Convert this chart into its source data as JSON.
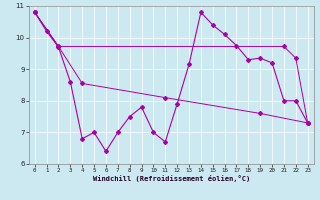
{
  "xlabel": "Windchill (Refroidissement éolien,°C)",
  "bg_color": "#cce8f0",
  "line_color": "#aa00aa",
  "xlim": [
    -0.5,
    23.5
  ],
  "ylim": [
    6,
    11
  ],
  "yticks": [
    6,
    7,
    8,
    9,
    10,
    11
  ],
  "xticks": [
    0,
    1,
    2,
    3,
    4,
    5,
    6,
    7,
    8,
    9,
    10,
    11,
    12,
    13,
    14,
    15,
    16,
    17,
    18,
    19,
    20,
    21,
    22,
    23
  ],
  "line1_x": [
    0,
    1,
    2,
    3,
    4,
    5,
    6,
    7,
    8,
    9,
    10,
    11,
    12,
    13,
    14,
    15,
    16,
    17,
    18,
    19,
    20,
    21,
    22,
    23
  ],
  "line1_y": [
    10.8,
    10.2,
    9.7,
    8.6,
    6.8,
    7.0,
    6.4,
    7.0,
    7.5,
    7.8,
    7.0,
    6.7,
    7.9,
    9.15,
    10.8,
    10.4,
    10.1,
    9.75,
    9.3,
    9.35,
    9.2,
    8.0,
    8.0,
    7.3
  ],
  "line2_x": [
    0,
    2,
    21,
    22,
    23
  ],
  "line2_y": [
    10.8,
    9.72,
    9.72,
    9.35,
    7.3
  ],
  "line3_x": [
    0,
    2,
    4,
    11,
    19,
    23
  ],
  "line3_y": [
    10.8,
    9.72,
    8.55,
    8.1,
    7.6,
    7.3
  ]
}
